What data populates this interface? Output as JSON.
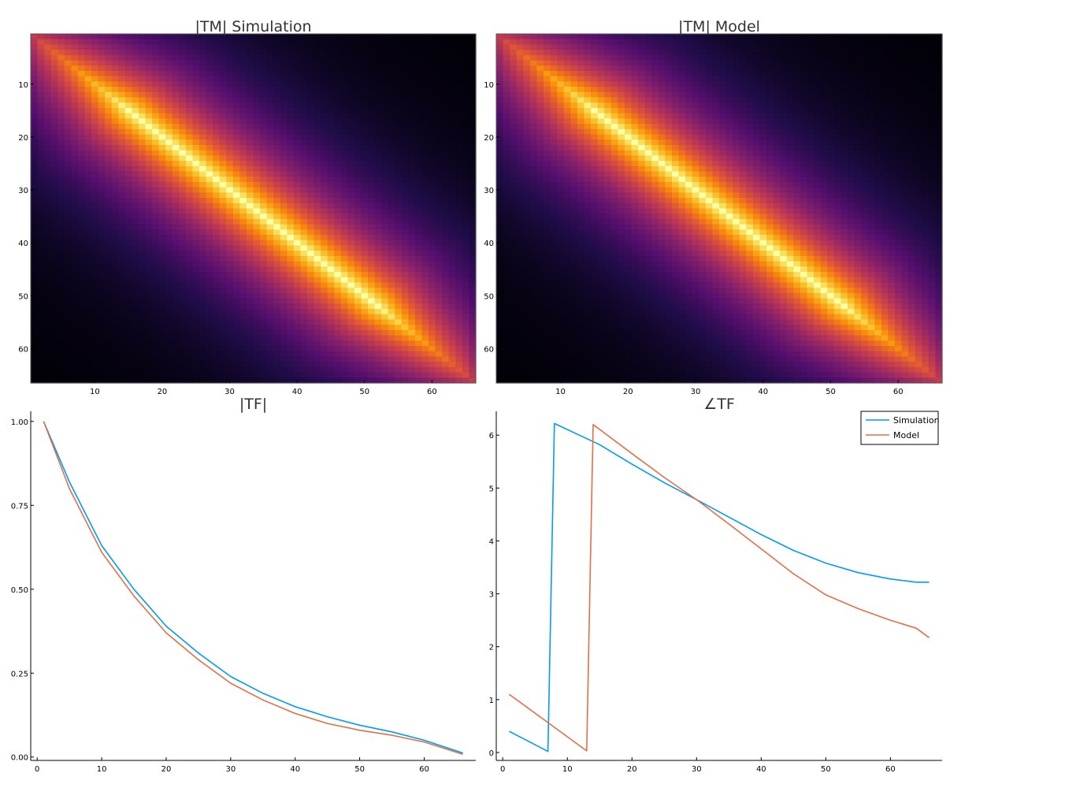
{
  "chart_data": [
    {
      "type": "heatmap",
      "title": "|TM| Simulation",
      "size": 66,
      "colormap": "inferno",
      "value_model": "magnitude peaks along diagonal and decays with |i-j|; highest in middle rows",
      "x_ticks": [
        10,
        20,
        30,
        40,
        50,
        60
      ],
      "y_ticks": [
        10,
        20,
        30,
        40,
        50,
        60
      ],
      "xlim": [
        0.5,
        66.5
      ],
      "ylim": [
        66.5,
        0.5
      ],
      "decay_scale": 13
    },
    {
      "type": "heatmap",
      "title": "|TM| Model",
      "size": 66,
      "colormap": "inferno",
      "value_model": "magnitude peaks along diagonal and decays with |i-j|; highest in middle rows",
      "x_ticks": [
        10,
        20,
        30,
        40,
        50,
        60
      ],
      "y_ticks": [
        10,
        20,
        30,
        40,
        50,
        60
      ],
      "xlim": [
        0.5,
        66.5
      ],
      "ylim": [
        66.5,
        0.5
      ],
      "decay_scale": 13
    },
    {
      "type": "line",
      "title": "|TF|",
      "xlim": [
        -1,
        68
      ],
      "ylim": [
        -0.01,
        1.03
      ],
      "x_ticks": [
        0,
        10,
        20,
        30,
        40,
        50,
        60
      ],
      "y_ticks": [
        0.0,
        0.25,
        0.5,
        0.75,
        1.0
      ],
      "y_tick_labels": [
        "0.00",
        "0.25",
        "0.50",
        "0.75",
        "1.00"
      ],
      "series": [
        {
          "name": "Simulation",
          "color": "#009af9",
          "points": [
            [
              1,
              1.0
            ],
            [
              5,
              0.82
            ],
            [
              10,
              0.63
            ],
            [
              15,
              0.5
            ],
            [
              20,
              0.39
            ],
            [
              25,
              0.31
            ],
            [
              30,
              0.24
            ],
            [
              35,
              0.19
            ],
            [
              40,
              0.15
            ],
            [
              45,
              0.12
            ],
            [
              50,
              0.095
            ],
            [
              55,
              0.075
            ],
            [
              60,
              0.05
            ],
            [
              66,
              0.012
            ]
          ]
        },
        {
          "name": "Model",
          "color": "#e26f46",
          "points": [
            [
              1,
              1.0
            ],
            [
              5,
              0.8
            ],
            [
              10,
              0.61
            ],
            [
              15,
              0.48
            ],
            [
              20,
              0.37
            ],
            [
              25,
              0.29
            ],
            [
              30,
              0.22
            ],
            [
              35,
              0.17
            ],
            [
              40,
              0.13
            ],
            [
              45,
              0.1
            ],
            [
              50,
              0.08
            ],
            [
              55,
              0.065
            ],
            [
              60,
              0.045
            ],
            [
              66,
              0.008
            ]
          ]
        }
      ]
    },
    {
      "type": "line",
      "title": "∠TF",
      "xlim": [
        -1,
        68
      ],
      "ylim": [
        -0.15,
        6.45
      ],
      "x_ticks": [
        0,
        10,
        20,
        30,
        40,
        50,
        60
      ],
      "y_ticks": [
        0,
        1,
        2,
        3,
        4,
        5,
        6
      ],
      "legend": "top-right",
      "series": [
        {
          "name": "Simulation",
          "color": "#009af9",
          "points": [
            [
              1,
              0.4
            ],
            [
              7,
              0.02
            ],
            [
              8,
              6.22
            ],
            [
              15,
              5.82
            ],
            [
              20,
              5.45
            ],
            [
              25,
              5.1
            ],
            [
              30,
              4.78
            ],
            [
              35,
              4.45
            ],
            [
              40,
              4.12
            ],
            [
              45,
              3.82
            ],
            [
              50,
              3.58
            ],
            [
              55,
              3.4
            ],
            [
              60,
              3.28
            ],
            [
              64,
              3.22
            ],
            [
              66,
              3.22
            ]
          ]
        },
        {
          "name": "Model",
          "color": "#e26f46",
          "points": [
            [
              1,
              1.1
            ],
            [
              13,
              0.03
            ],
            [
              14,
              6.2
            ],
            [
              20,
              5.65
            ],
            [
              25,
              5.2
            ],
            [
              30,
              4.78
            ],
            [
              35,
              4.32
            ],
            [
              40,
              3.85
            ],
            [
              45,
              3.38
            ],
            [
              50,
              2.98
            ],
            [
              55,
              2.72
            ],
            [
              60,
              2.5
            ],
            [
              64,
              2.35
            ],
            [
              66,
              2.17
            ]
          ]
        }
      ]
    }
  ]
}
